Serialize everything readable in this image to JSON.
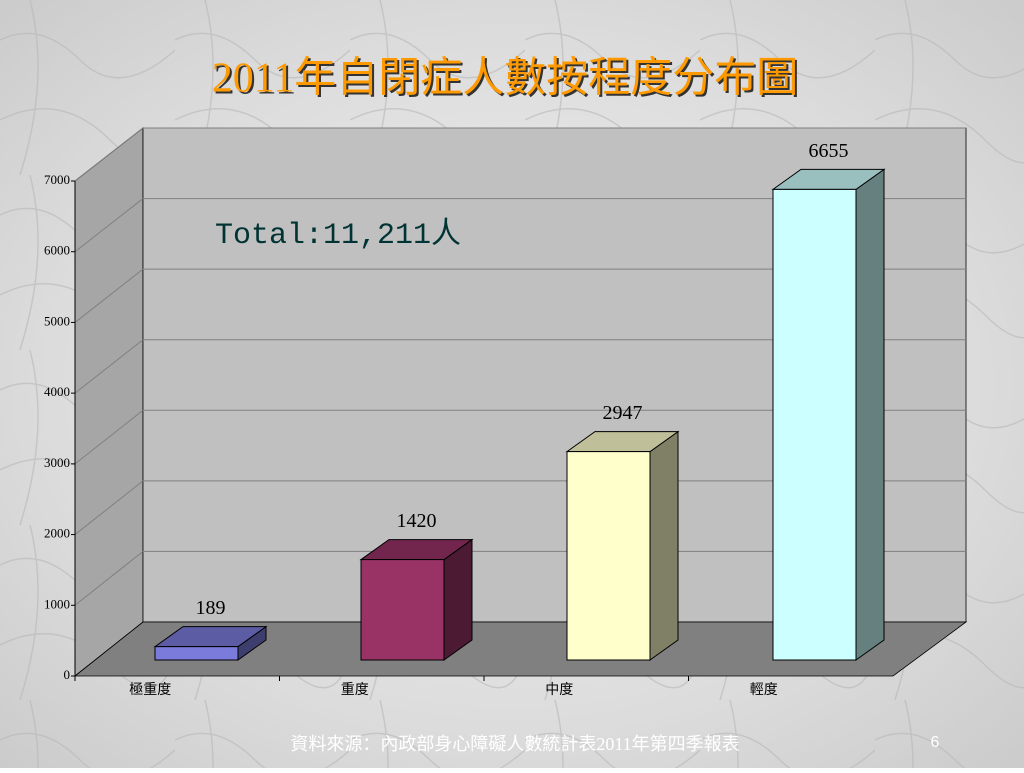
{
  "chart_data": {
    "type": "bar3d",
    "title": "2011年自閉症人數按程度分布圖",
    "annotation": "Total:11,211人",
    "categories": [
      "極重度",
      "重度",
      "中度",
      "輕度"
    ],
    "values": [
      189,
      1420,
      2947,
      6655
    ],
    "colors": [
      "#7b7bdb",
      "#993366",
      "#ffffcc",
      "#ccffff"
    ],
    "ylim": [
      0,
      7000
    ],
    "yticks": [
      0,
      1000,
      2000,
      3000,
      4000,
      5000,
      6000,
      7000
    ],
    "grid": true
  },
  "footer": {
    "source": "資料來源：內政部身心障礙人數統計表2011年第四季報表",
    "page": "6"
  }
}
